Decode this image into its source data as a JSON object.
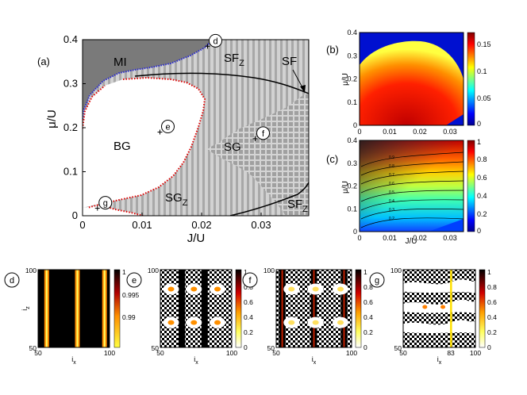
{
  "colors": {
    "mi_gray": "#7a7a7a",
    "stripe_light": "#d2d2d2",
    "stripe_dark": "#a8a8a8",
    "sg_fill": "#a0a0a0",
    "sg_grid": "#d4d4d4",
    "boundary_red": "#e00000",
    "boundary_blue": "#2a2ad0"
  },
  "panel_a": {
    "label": "(a)",
    "xlabel": "J/U",
    "ylabel": "μ/U",
    "xticks": [
      "0",
      "0.01",
      "0.02",
      "0.03"
    ],
    "yticks": [
      "0",
      "0.1",
      "0.2",
      "0.3",
      "0.4"
    ],
    "xlim": [
      0,
      0.038
    ],
    "ylim": [
      0,
      0.4
    ],
    "phases": {
      "mi": "MI",
      "bg": "BG",
      "sg": "SG",
      "sfz_top": "SF",
      "sfz_top_sub": "Z",
      "sf": "SF",
      "sgz": "SG",
      "sgz_sub": "Z",
      "sfz_bottom": "SF",
      "sfz_bottom_sub": "Z"
    },
    "markers": [
      {
        "label": "d",
        "J": 0.021,
        "mu": 0.385
      },
      {
        "label": "e",
        "J": 0.013,
        "mu": 0.19
      },
      {
        "label": "f",
        "J": 0.029,
        "mu": 0.175
      },
      {
        "label": "g",
        "J": 0.0025,
        "mu": 0.017
      }
    ]
  },
  "panel_b": {
    "label": "(b)",
    "ylabel": "μ/U",
    "xticks": [
      "0",
      "0.01",
      "0.02",
      "0.03"
    ],
    "yticks": [
      "0",
      "0.1",
      "0.2",
      "0.3",
      "0.4"
    ],
    "cbar_ticks": [
      "0.15",
      "0.1",
      "0.05",
      "0"
    ]
  },
  "panel_c": {
    "label": "(c)",
    "xlabel": "J/U",
    "ylabel": "μ/U",
    "xticks": [
      "0",
      "0.01",
      "0.02",
      "0.03"
    ],
    "yticks": [
      "0",
      "0.1",
      "0.2",
      "0.3",
      "0.4"
    ],
    "cbar_ticks": [
      "1",
      "0.8",
      "0.6",
      "0.4",
      "0.2",
      "0"
    ],
    "contour_labels": [
      "0.9",
      "0.8",
      "0.7",
      "0.6",
      "0.5",
      "0.4",
      "0.3",
      "0.2"
    ]
  },
  "bottom_panels": [
    {
      "label": "d",
      "xlabel": "i",
      "xsub": "x",
      "ylabel": "i",
      "ysub": "z",
      "xticks": [
        "50",
        "100"
      ],
      "yticks": [
        "100",
        "50"
      ],
      "cbar_ticks": [
        "1",
        "0.995",
        "0.99"
      ]
    },
    {
      "label": "e",
      "xlabel": "i",
      "xsub": "x",
      "xticks": [
        "50",
        "100"
      ],
      "yticks": [
        "100",
        "50"
      ],
      "cbar_ticks": [
        "1",
        "0.8",
        "0.6",
        "0.4",
        "0.2",
        "0"
      ]
    },
    {
      "label": "f",
      "xlabel": "i",
      "xsub": "x",
      "xticks": [
        "50",
        "100"
      ],
      "yticks": [
        "100",
        "50"
      ],
      "cbar_ticks": [
        "1",
        "0.8",
        "0.6",
        "0.4",
        "0.2",
        "0"
      ]
    },
    {
      "label": "g",
      "xlabel": "i",
      "xsub": "x",
      "xticks": [
        "50",
        "83",
        "100"
      ],
      "yticks": [
        "100",
        "50"
      ],
      "cbar_ticks": [
        "1",
        "0.8",
        "0.6",
        "0.4",
        "0.2",
        "0"
      ]
    }
  ]
}
